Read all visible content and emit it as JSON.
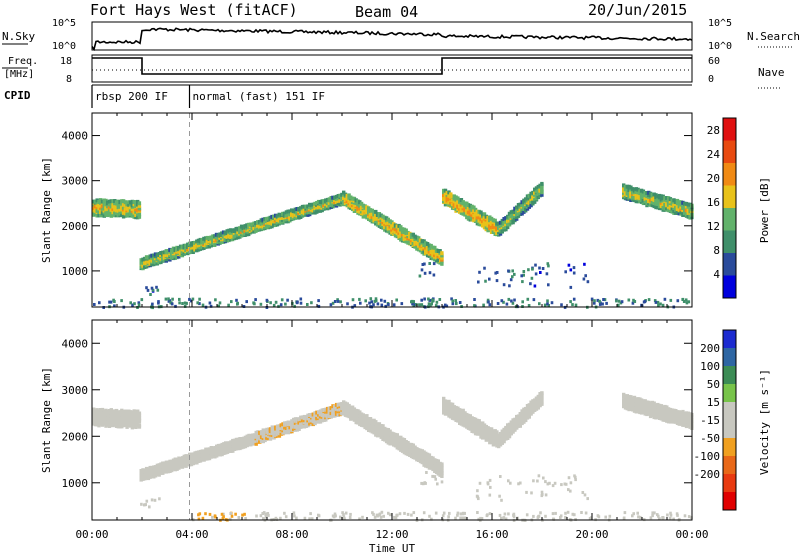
{
  "header": {
    "station": "Fort Hays West (fitACF)",
    "beam": "Beam 04",
    "date": "20/Jun/2015"
  },
  "strip_labels": {
    "nsky": "N.Sky",
    "nsearch": "N.Search",
    "freq_top": "Freq.",
    "freq_unit": "[MHz]",
    "nave": "Nave",
    "cpid": "CPID"
  },
  "strip_ticks": {
    "nsky_left": [
      "10^5",
      "10^0"
    ],
    "nsky_right": [
      "10^5",
      "10^0"
    ],
    "freq_left": [
      "18",
      "8"
    ],
    "nave_right": [
      "60",
      "0"
    ]
  },
  "cpid_segments": [
    {
      "label": "rbsp 200 IF",
      "start_hour": 0,
      "end_hour": 3.9
    },
    {
      "label": "normal (fast) 151 IF",
      "start_hour": 3.9,
      "end_hour": 24
    }
  ],
  "frequency_steps": [
    {
      "start_hour": 0,
      "end_hour": 2.0,
      "level": "high"
    },
    {
      "start_hour": 2.0,
      "end_hour": 14.0,
      "level": "low"
    },
    {
      "start_hour": 14.0,
      "end_hour": 24,
      "level": "high"
    }
  ],
  "colors": {
    "power_scale": [
      "#0000dd",
      "#2a4b9b",
      "#3f8f6a",
      "#62b26b",
      "#e8c21a",
      "#f08a14",
      "#e84a10",
      "#e01010"
    ],
    "velocity_scale": [
      "#1c2bd0",
      "#2e66a3",
      "#3c8c55",
      "#78c44a",
      "#c8c8c0",
      "#c8c8c0",
      "#f0a020",
      "#e86818",
      "#e83a10",
      "#e00000"
    ],
    "ground_scatter": "#a8a8a8"
  },
  "chart_data": [
    {
      "type": "heatmap",
      "panel": "power",
      "title": "",
      "ylabel": "Slant Range [km]",
      "xlabel": "Time UT",
      "xlim": [
        0,
        24
      ],
      "ylim": [
        200,
        4500
      ],
      "x_ticks": [
        "00:00",
        "04:00",
        "08:00",
        "12:00",
        "16:00",
        "20:00",
        "00:00"
      ],
      "y_ticks": [
        "1000",
        "2000",
        "3000",
        "4000"
      ],
      "colorbar": {
        "label": "Power [dB]",
        "ticks": [
          "4",
          "8",
          "12",
          "16",
          "20",
          "24",
          "28"
        ],
        "range": [
          0,
          30
        ]
      },
      "bands": [
        {
          "t0": 0.0,
          "t1": 1.9,
          "r_start": 2450,
          "r_end": 2400,
          "width": 350,
          "level": 14
        },
        {
          "t0": 1.9,
          "t1": 10.0,
          "r_start": 1200,
          "r_end": 2650,
          "width": 220,
          "level": 13
        },
        {
          "t0": 10.0,
          "t1": 14.0,
          "r_start": 2650,
          "r_end": 1300,
          "width": 280,
          "level": 15
        },
        {
          "t0": 14.0,
          "t1": 16.2,
          "r_start": 2700,
          "r_end": 1950,
          "width": 320,
          "level": 16
        },
        {
          "t0": 16.2,
          "t1": 18.0,
          "r_start": 1950,
          "r_end": 2900,
          "width": 280,
          "level": 12
        },
        {
          "t0": 21.2,
          "t1": 24.0,
          "r_start": 2800,
          "r_end": 2350,
          "width": 300,
          "level": 13
        }
      ],
      "patches": [
        {
          "t0": 1.9,
          "t1": 2.7,
          "r0": 500,
          "r1": 700,
          "level": 6
        },
        {
          "t0": 13.0,
          "t1": 14.0,
          "r0": 900,
          "r1": 1300,
          "level": 7
        },
        {
          "t0": 15.3,
          "t1": 17.5,
          "r0": 700,
          "r1": 1100,
          "level": 6
        },
        {
          "t0": 17.5,
          "t1": 19.8,
          "r0": 650,
          "r1": 1200,
          "level": 6
        },
        {
          "t0": 0.0,
          "t1": 24.0,
          "r0": 220,
          "r1": 420,
          "level": 8
        }
      ]
    },
    {
      "type": "heatmap",
      "panel": "velocity",
      "title": "",
      "ylabel": "Slant Range [km]",
      "xlabel": "Time UT",
      "xlim": [
        0,
        24
      ],
      "ylim": [
        200,
        4500
      ],
      "x_ticks": [
        "00:00",
        "04:00",
        "08:00",
        "12:00",
        "16:00",
        "20:00",
        "00:00"
      ],
      "y_ticks": [
        "1000",
        "2000",
        "3000",
        "4000"
      ],
      "colorbar": {
        "label": "Velocity [m s⁻¹]",
        "ticks": [
          "200",
          "100",
          "50",
          "15",
          "-15",
          "-50",
          "-100",
          "-200"
        ],
        "range": [
          -250,
          250
        ]
      },
      "bands": [
        {
          "t0": 0.0,
          "t1": 1.9,
          "r_start": 2450,
          "r_end": 2400,
          "width": 350,
          "velocity": 0
        },
        {
          "t0": 1.9,
          "t1": 6.5,
          "r_start": 1200,
          "r_end": 2000,
          "width": 220,
          "velocity": 0
        },
        {
          "t0": 6.5,
          "t1": 10.0,
          "r_start": 2000,
          "r_end": 2650,
          "width": 240,
          "velocity": -40
        },
        {
          "t0": 10.0,
          "t1": 14.0,
          "r_start": 2650,
          "r_end": 1300,
          "width": 280,
          "velocity": 30
        },
        {
          "t0": 14.0,
          "t1": 16.2,
          "r_start": 2700,
          "r_end": 1950,
          "width": 320,
          "velocity": 0
        },
        {
          "t0": 16.2,
          "t1": 18.0,
          "r_start": 1950,
          "r_end": 2900,
          "width": 280,
          "velocity": 0
        },
        {
          "t0": 21.2,
          "t1": 24.0,
          "r_start": 2800,
          "r_end": 2350,
          "width": 300,
          "velocity": 0
        }
      ],
      "patches": [
        {
          "t0": 1.9,
          "t1": 2.7,
          "r0": 500,
          "r1": 700,
          "velocity": 0
        },
        {
          "t0": 3.9,
          "t1": 6.5,
          "r0": 220,
          "r1": 380,
          "velocity": -60
        },
        {
          "t0": 13.0,
          "t1": 14.0,
          "r0": 900,
          "r1": 1300,
          "velocity": 0
        },
        {
          "t0": 15.3,
          "t1": 19.8,
          "r0": 650,
          "r1": 1200,
          "velocity": 0
        },
        {
          "t0": 6.5,
          "t1": 24.0,
          "r0": 220,
          "r1": 400,
          "velocity": 30
        }
      ]
    }
  ]
}
